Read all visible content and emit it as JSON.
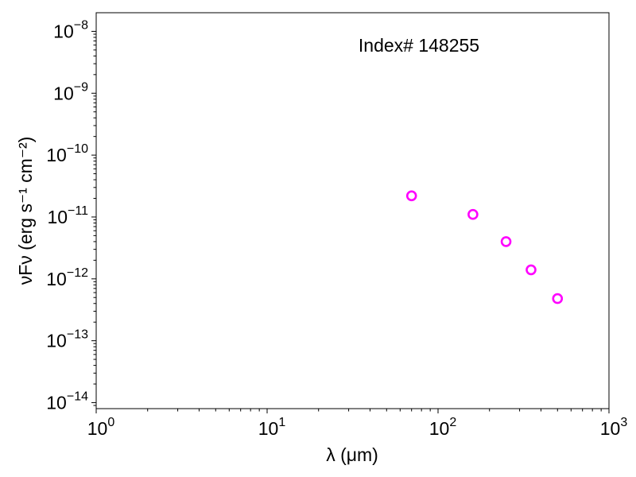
{
  "chart_data": {
    "type": "scatter",
    "annotation": "Index# 148255",
    "xlabel": "λ (μm)",
    "ylabel": "νFν (erg s⁻¹ cm⁻²)",
    "xscale": "log",
    "yscale": "log",
    "xlim": [
      1,
      1000
    ],
    "ylim": [
      8e-15,
      2e-08
    ],
    "x_ticks": [
      {
        "base": "10",
        "exp": "0"
      },
      {
        "base": "10",
        "exp": "1"
      },
      {
        "base": "10",
        "exp": "2"
      },
      {
        "base": "10",
        "exp": "3"
      }
    ],
    "y_ticks": [
      {
        "base": "10",
        "exp": "−14"
      },
      {
        "base": "10",
        "exp": "−13"
      },
      {
        "base": "10",
        "exp": "−12"
      },
      {
        "base": "10",
        "exp": "−11"
      },
      {
        "base": "10",
        "exp": "−10"
      },
      {
        "base": "10",
        "exp": "−9"
      },
      {
        "base": "10",
        "exp": "−8"
      }
    ],
    "marker": {
      "shape": "open-circle",
      "color": "#ff00ff"
    },
    "points": [
      {
        "x": 70,
        "y": 2.2e-11
      },
      {
        "x": 160,
        "y": 1.1e-11
      },
      {
        "x": 250,
        "y": 4e-12
      },
      {
        "x": 350,
        "y": 1.4e-12
      },
      {
        "x": 500,
        "y": 4.8e-13
      }
    ],
    "grid": false,
    "legend": "none"
  }
}
